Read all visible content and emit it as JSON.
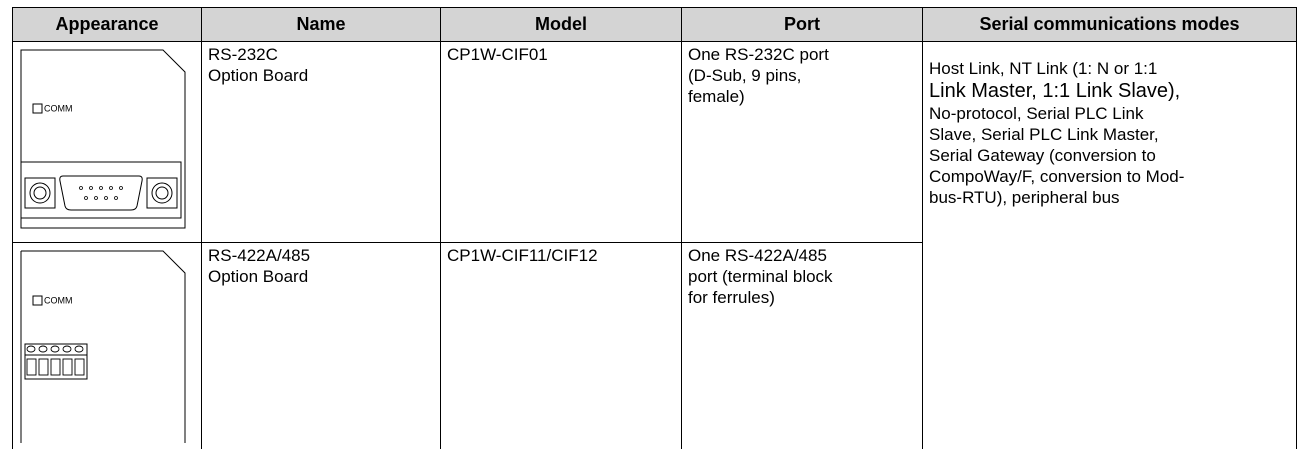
{
  "table": {
    "header": [
      "Appearance",
      "Name",
      "Model",
      "Port",
      "Serial communications modes"
    ],
    "rows": [
      {
        "appearance_label": "COMM",
        "name": [
          "RS-232C",
          "Option Board"
        ],
        "model": "CP1W-CIF01",
        "port": [
          "One RS-232C port",
          "(D-Sub, 9 pins,",
          "female)"
        ]
      },
      {
        "appearance_label": "COMM",
        "name": [
          "RS-422A/485",
          "Option Board"
        ],
        "model": "CP1W-CIF11/CIF12",
        "port": [
          "One RS-422A/485",
          "port (terminal block",
          "for ferrules)"
        ]
      }
    ],
    "modes": [
      "Host Link, NT Link (1: N or 1:1",
      "Link Master, 1:1 Link Slave),",
      "No-protocol, Serial PLC Link",
      "Slave, Serial PLC Link Master,",
      "Serial Gateway (conversion to",
      "CompoWay/F, conversion to Mod-",
      "bus-RTU), peripheral bus"
    ]
  }
}
